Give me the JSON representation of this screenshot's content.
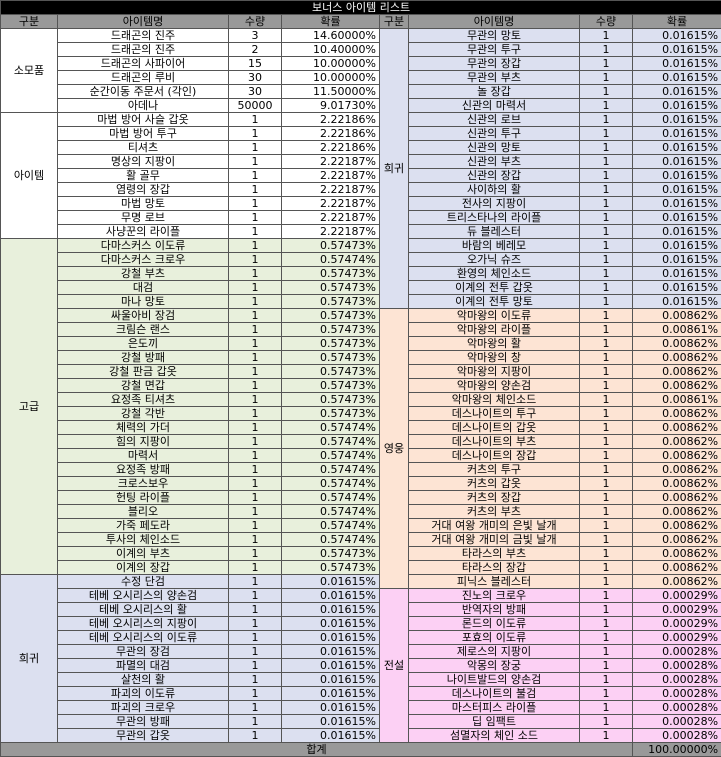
{
  "title": "보너스 아이템 리스트",
  "headers": [
    "구분",
    "아이템명",
    "수량",
    "확률",
    "구분",
    "아이템명",
    "수량",
    "확률"
  ],
  "left_groups": [
    {
      "category": "소모품",
      "color": "#ffffff",
      "rows": [
        [
          "드래곤의 진주",
          "3",
          "14.60000%"
        ],
        [
          "드래곤의 진주",
          "2",
          "10.40000%"
        ],
        [
          "드래곤의 사파이어",
          "15",
          "10.00000%"
        ],
        [
          "드래곤의 루비",
          "30",
          "10.00000%"
        ],
        [
          "순간이동 주문서 (각인)",
          "30",
          "11.50000%"
        ],
        [
          "아데나",
          "50000",
          "9.01730%"
        ]
      ]
    },
    {
      "category": "아이템",
      "color": "#ffffff",
      "rows": [
        [
          "마법 방어 사슬 갑옷",
          "1",
          "2.22186%"
        ],
        [
          "마법 방어 투구",
          "1",
          "2.22186%"
        ],
        [
          "티셔츠",
          "1",
          "2.22186%"
        ],
        [
          "명상의 지팡이",
          "1",
          "2.22187%"
        ],
        [
          "활 골무",
          "1",
          "2.22187%"
        ],
        [
          "염령의 장갑",
          "1",
          "2.22187%"
        ],
        [
          "마법 망토",
          "1",
          "2.22187%"
        ],
        [
          "무명 로브",
          "1",
          "2.22187%"
        ],
        [
          "사냥꾼의 라이플",
          "1",
          "2.22187%"
        ]
      ]
    },
    {
      "category": "고급",
      "color": "#e8f0dc",
      "rows": [
        [
          "다마스커스 이도류",
          "1",
          "0.57473%"
        ],
        [
          "다마스커스 크로우",
          "1",
          "0.57474%"
        ],
        [
          "강철 부츠",
          "1",
          "0.57473%"
        ],
        [
          "대검",
          "1",
          "0.57473%"
        ],
        [
          "마나 망토",
          "1",
          "0.57473%"
        ],
        [
          "싸울아비 장검",
          "1",
          "0.57473%"
        ],
        [
          "크림슨 랜스",
          "1",
          "0.57473%"
        ],
        [
          "은도끼",
          "1",
          "0.57473%"
        ],
        [
          "강철 방패",
          "1",
          "0.57473%"
        ],
        [
          "강철 판금 갑옷",
          "1",
          "0.57473%"
        ],
        [
          "강철 면갑",
          "1",
          "0.57473%"
        ],
        [
          "요정족 티셔츠",
          "1",
          "0.57473%"
        ],
        [
          "강철 각반",
          "1",
          "0.57473%"
        ],
        [
          "체력의 가더",
          "1",
          "0.57474%"
        ],
        [
          "힘의 지팡이",
          "1",
          "0.57474%"
        ],
        [
          "마력서",
          "1",
          "0.57474%"
        ],
        [
          "요정족 방패",
          "1",
          "0.57474%"
        ],
        [
          "크로스보우",
          "1",
          "0.57474%"
        ],
        [
          "헌팅 라이플",
          "1",
          "0.57474%"
        ],
        [
          "블리오",
          "1",
          "0.57474%"
        ],
        [
          "가죽 페도라",
          "1",
          "0.57474%"
        ],
        [
          "투사의 체인소드",
          "1",
          "0.57474%"
        ],
        [
          "이계의 부츠",
          "1",
          "0.57473%"
        ],
        [
          "이계의 장갑",
          "1",
          "0.57473%"
        ]
      ]
    },
    {
      "category": "희귀",
      "color": "#dce0f0",
      "rows": [
        [
          "수정 단검",
          "1",
          "0.01615%"
        ],
        [
          "테베 오시리스의 양손검",
          "1",
          "0.01615%"
        ],
        [
          "테베 오시리스의 활",
          "1",
          "0.01615%"
        ],
        [
          "테베 오시리스의 지팡이",
          "1",
          "0.01615%"
        ],
        [
          "테베 오시리스의 이도류",
          "1",
          "0.01615%"
        ],
        [
          "무관의 장검",
          "1",
          "0.01615%"
        ],
        [
          "파멸의 대검",
          "1",
          "0.01615%"
        ],
        [
          "살천의 활",
          "1",
          "0.01615%"
        ],
        [
          "파괴의 이도류",
          "1",
          "0.01615%"
        ],
        [
          "파괴의 크로우",
          "1",
          "0.01615%"
        ],
        [
          "무관의 방패",
          "1",
          "0.01615%"
        ],
        [
          "무관의 갑옷",
          "1",
          "0.01615%"
        ]
      ]
    }
  ],
  "right_groups": [
    {
      "category": "희귀",
      "color": "#dce0f0",
      "rows": [
        [
          "무관의 망토",
          "1",
          "0.01615%"
        ],
        [
          "무관의 투구",
          "1",
          "0.01615%"
        ],
        [
          "무관의 장갑",
          "1",
          "0.01615%"
        ],
        [
          "무관의 부츠",
          "1",
          "0.01615%"
        ],
        [
          "놀 장갑",
          "1",
          "0.01615%"
        ],
        [
          "신관의 마력서",
          "1",
          "0.01615%"
        ],
        [
          "신관의 로브",
          "1",
          "0.01615%"
        ],
        [
          "신관의 투구",
          "1",
          "0.01615%"
        ],
        [
          "신관의 망토",
          "1",
          "0.01615%"
        ],
        [
          "신관의 부츠",
          "1",
          "0.01615%"
        ],
        [
          "신관의 장갑",
          "1",
          "0.01615%"
        ],
        [
          "사이하의 활",
          "1",
          "0.01615%"
        ],
        [
          "전사의 지팡이",
          "1",
          "0.01615%"
        ],
        [
          "트리스타나의 라이플",
          "1",
          "0.01615%"
        ],
        [
          "듀 블레스터",
          "1",
          "0.01615%"
        ],
        [
          "바람의 베레모",
          "1",
          "0.01615%"
        ],
        [
          "오가닉 슈즈",
          "1",
          "0.01615%"
        ],
        [
          "환영의 체인소드",
          "1",
          "0.01615%"
        ],
        [
          "이계의 전투 갑옷",
          "1",
          "0.01615%"
        ],
        [
          "이계의 전투 망토",
          "1",
          "0.01615%"
        ]
      ]
    },
    {
      "category": "영웅",
      "color": "#fde4d4",
      "rows": [
        [
          "악마왕의 이도류",
          "1",
          "0.00862%"
        ],
        [
          "악마왕의 라이플",
          "1",
          "0.00861%"
        ],
        [
          "악마왕의 활",
          "1",
          "0.00862%"
        ],
        [
          "악마왕의 창",
          "1",
          "0.00862%"
        ],
        [
          "악마왕의 지팡이",
          "1",
          "0.00862%"
        ],
        [
          "악마왕의 양손검",
          "1",
          "0.00862%"
        ],
        [
          "악마왕의 체인소드",
          "1",
          "0.00861%"
        ],
        [
          "데스나이트의 투구",
          "1",
          "0.00862%"
        ],
        [
          "데스나이트의 갑옷",
          "1",
          "0.00862%"
        ],
        [
          "데스나이트의 부츠",
          "1",
          "0.00862%"
        ],
        [
          "데스나이트의 장갑",
          "1",
          "0.00862%"
        ],
        [
          "커츠의 투구",
          "1",
          "0.00862%"
        ],
        [
          "커츠의 갑옷",
          "1",
          "0.00862%"
        ],
        [
          "커츠의 장갑",
          "1",
          "0.00862%"
        ],
        [
          "커츠의 부츠",
          "1",
          "0.00862%"
        ],
        [
          "거대 여왕 개미의 은빛 날개",
          "1",
          "0.00862%"
        ],
        [
          "거대 여왕 개미의 금빛 날개",
          "1",
          "0.00862%"
        ],
        [
          "타라스의 부츠",
          "1",
          "0.00862%"
        ],
        [
          "타라스의 장갑",
          "1",
          "0.00862%"
        ],
        [
          "피닉스 블레스터",
          "1",
          "0.00862%"
        ]
      ]
    },
    {
      "category": "전설",
      "color": "#fcd0f4",
      "rows": [
        [
          "진노의 크로우",
          "1",
          "0.00029%"
        ],
        [
          "반역자의 방패",
          "1",
          "0.00029%"
        ],
        [
          "론드의 이도류",
          "1",
          "0.00029%"
        ],
        [
          "포효의 이도류",
          "1",
          "0.00029%"
        ],
        [
          "제로스의 지팡이",
          "1",
          "0.00028%"
        ],
        [
          "악몽의 장궁",
          "1",
          "0.00028%"
        ],
        [
          "나이트발드의 양손검",
          "1",
          "0.00028%"
        ],
        [
          "데스나이트의 불검",
          "1",
          "0.00028%"
        ],
        [
          "마스터피스 라이플",
          "1",
          "0.00028%"
        ],
        [
          "딥 임팩트",
          "1",
          "0.00028%"
        ],
        [
          "섬멸자의 체인 소드",
          "1",
          "0.00028%"
        ]
      ]
    }
  ],
  "total_label": "합계",
  "total_value": "100.00000%"
}
